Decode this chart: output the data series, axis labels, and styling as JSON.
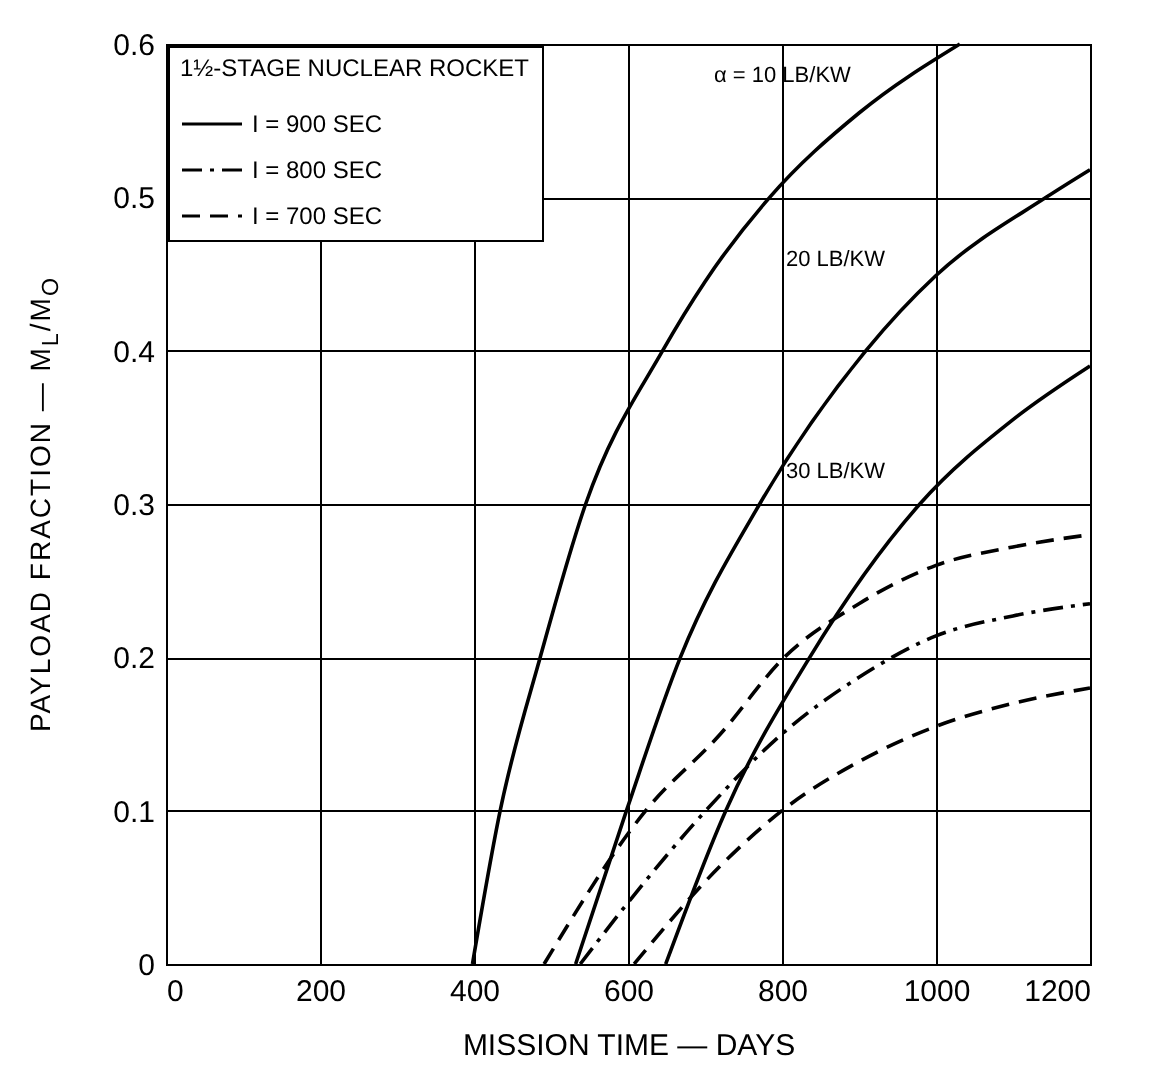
{
  "chart_data": {
    "type": "line",
    "xlabel": "MISSION TIME — DAYS",
    "ylabel": "PAYLOAD FRACTION — M$_{L}$/M$_{O}$",
    "legend_title": "1½-STAGE NUCLEAR ROCKET",
    "xlim": [
      0,
      1200
    ],
    "xticks": [
      0,
      200,
      400,
      600,
      800,
      1000,
      1200
    ],
    "ylim": [
      0,
      0.6
    ],
    "yticks": [
      0,
      0.1,
      0.2,
      0.3,
      0.4,
      0.5,
      0.6
    ],
    "grid": true,
    "legend": "top left",
    "series": [
      {
        "name": "I = 900 SEC",
        "color": "#000000",
        "line_style": "solid",
        "x": [
          398,
          434,
          486,
          545,
          645,
          700,
          784,
          900,
          1031
        ],
        "values": [
          0,
          0.1,
          0.2,
          0.3,
          0.4,
          0.445,
          0.5,
          0.555,
          0.6
        ]
      },
      {
        "color": "#000000",
        "line_style": "solid",
        "x": [
          532,
          598,
          668,
          771,
          909,
          1000,
          1143,
          1200
        ],
        "values": [
          0,
          0.1,
          0.2,
          0.3,
          0.4,
          0.449,
          0.5,
          0.518
        ]
      },
      {
        "color": "#000000",
        "line_style": "solid",
        "x": [
          649,
          727,
          836,
          979,
          1100,
          1200
        ],
        "values": [
          0,
          0.1,
          0.2,
          0.3,
          0.355,
          0.39
        ]
      },
      {
        "name": "I = 800 SEC",
        "color": "#000000",
        "line_style": "dashdot",
        "x": [
          538,
          600,
          701,
          800,
          900,
          1000,
          1100,
          1200
        ],
        "values": [
          0,
          0.04,
          0.1,
          0.15,
          0.187,
          0.214,
          0.227,
          0.235
        ]
      },
      {
        "name": "I = 700 SEC",
        "color": "#000000",
        "line_style": "dashed",
        "x": [
          491,
          623,
          720,
          803,
          900,
          1000,
          1100,
          1200
        ],
        "values": [
          0,
          0.1,
          0.15,
          0.2,
          0.235,
          0.26,
          0.272,
          0.28
        ]
      },
      {
        "color": "#000000",
        "line_style": "dashed",
        "x": [
          608,
          720,
          800,
          900,
          1000,
          1100,
          1200
        ],
        "values": [
          0,
          0.064,
          0.1,
          0.132,
          0.155,
          0.17,
          0.18
        ]
      }
    ],
    "annotations": [
      "α = 10 LB/KW",
      "20 LB/KW",
      "30 LB/KW"
    ]
  }
}
